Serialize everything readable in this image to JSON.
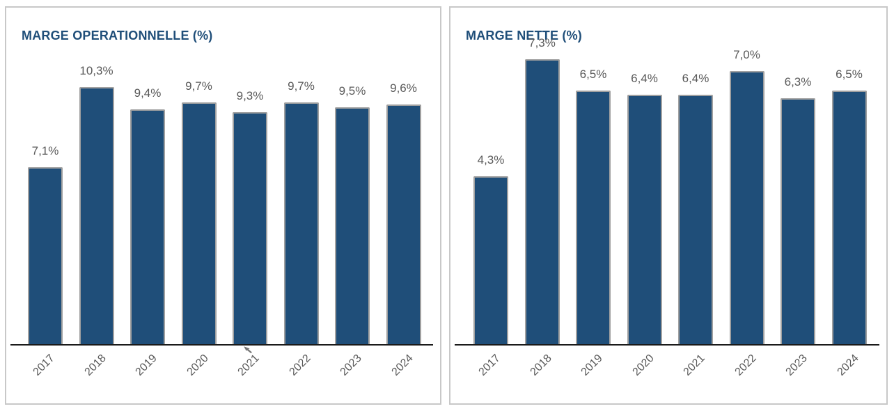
{
  "page": {
    "background": "#ffffff",
    "card_border_color": "#c8c8c8"
  },
  "chart_data": [
    {
      "type": "bar",
      "title": "MARGE OPERATIONNELLE (%)",
      "categories": [
        "2017",
        "2018",
        "2019",
        "2020",
        "2021",
        "2022",
        "2023",
        "2024"
      ],
      "values": [
        7.1,
        10.3,
        9.4,
        9.7,
        9.3,
        9.7,
        9.5,
        9.6
      ],
      "value_labels": [
        "7,1%",
        "10,3%",
        "9,4%",
        "9,7%",
        "9,3%",
        "9,7%",
        "9,5%",
        "9,6%"
      ],
      "xlabel": "",
      "ylabel": "",
      "ylim": [
        0,
        10.3
      ],
      "grid": false,
      "legend": "none",
      "y_axis_visible": false,
      "x_tick_rotation_deg": 45,
      "title_color": "#1F4E79",
      "bar_color": "#1F4E79",
      "bar_border_color": "#a0a0a0",
      "label_color": "#595959",
      "axis_color": "#1a1a1a"
    },
    {
      "type": "bar",
      "title": "MARGE NETTE (%)",
      "categories": [
        "2017",
        "2018",
        "2019",
        "2020",
        "2021",
        "2022",
        "2023",
        "2024"
      ],
      "values": [
        4.3,
        7.3,
        6.5,
        6.4,
        6.4,
        7.0,
        6.3,
        6.5
      ],
      "value_labels": [
        "4,3%",
        "7,3%",
        "6,5%",
        "6,4%",
        "6,4%",
        "7,0%",
        "6,3%",
        "6,5%"
      ],
      "xlabel": "",
      "ylabel": "",
      "ylim": [
        0,
        7.3
      ],
      "grid": false,
      "legend": "none",
      "y_axis_visible": false,
      "x_tick_rotation_deg": 45,
      "title_color": "#1F4E79",
      "bar_color": "#1F4E79",
      "bar_border_color": "#a0a0a0",
      "label_color": "#595959",
      "axis_color": "#1a1a1a"
    }
  ],
  "icons": {
    "mouse_cursor": "arrow-northwest",
    "mouse_cursor_color": "#757575"
  }
}
